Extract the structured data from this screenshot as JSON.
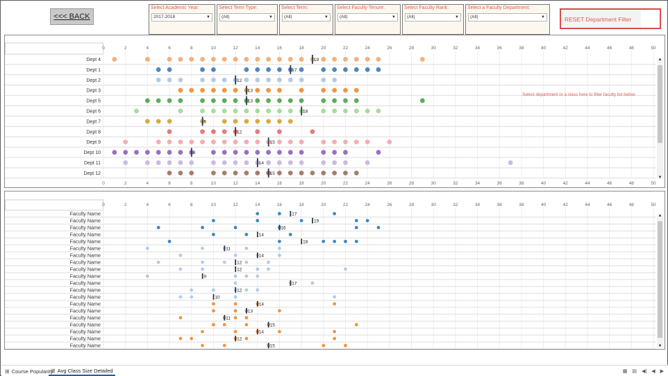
{
  "header": {
    "back_label": "<<< BACK",
    "reset_label": "RESET Department Filter"
  },
  "filters": [
    {
      "label": "Select Academic Year:",
      "value": "2017-2018"
    },
    {
      "label": "Select Term Type:",
      "value": "(All)"
    },
    {
      "label": "Select Term:",
      "value": "(All)"
    },
    {
      "label": "Select Faculty Tenure:",
      "value": "(All)"
    },
    {
      "label": "Select Faculty Rank:",
      "value": "(All)"
    },
    {
      "label": "Select a  Faculty Department:",
      "value": "(All)"
    }
  ],
  "hint": "Select department or a class here to filter faculty list below",
  "chart_data": [
    {
      "type": "scatter",
      "title": "",
      "xlim": [
        0,
        50
      ],
      "xticks": [
        0,
        2,
        4,
        6,
        8,
        10,
        12,
        14,
        16,
        18,
        20,
        22,
        24,
        26,
        28,
        30,
        32,
        34,
        36,
        38,
        40,
        42,
        44,
        46,
        48,
        50
      ],
      "rows": [
        {
          "label": "Dept 4",
          "avg": 19,
          "color": "#f2a96a",
          "points": [
            1,
            4,
            6,
            7,
            8,
            9,
            10,
            11,
            12,
            13,
            14,
            15,
            16,
            17,
            18,
            19,
            20,
            21,
            22,
            23,
            24,
            25,
            29
          ]
        },
        {
          "label": "Dept 1",
          "avg": 17,
          "color": "#3b7bb5",
          "points": [
            5,
            6,
            9,
            10,
            13,
            14,
            15,
            16,
            17,
            18,
            20,
            21,
            22,
            23,
            24,
            25
          ]
        },
        {
          "label": "Dept 2",
          "avg": 12,
          "color": "#a9c6e6",
          "points": [
            5,
            6,
            7,
            9,
            10,
            11,
            12,
            13,
            14,
            15,
            16,
            17,
            18,
            20,
            21
          ]
        },
        {
          "label": "Dept 3",
          "avg": 13,
          "color": "#ee8a2c",
          "points": [
            7,
            8,
            9,
            10,
            11,
            12,
            13,
            14,
            15,
            16,
            18,
            20,
            21,
            22,
            23
          ]
        },
        {
          "label": "Dept 5",
          "avg": 13,
          "color": "#4aa34a",
          "points": [
            4,
            5,
            6,
            7,
            9,
            10,
            11,
            12,
            13,
            14,
            15,
            16,
            17,
            18,
            20,
            21,
            22,
            23,
            29
          ]
        },
        {
          "label": "Dept 6",
          "avg": 18,
          "color": "#9dd98f",
          "points": [
            3,
            7,
            9,
            10,
            11,
            12,
            13,
            14,
            15,
            16,
            17,
            18,
            20,
            21,
            22,
            23,
            24,
            25
          ]
        },
        {
          "label": "Dept 7",
          "avg": 9,
          "color": "#d6a12c",
          "points": [
            4,
            5,
            6,
            9,
            11,
            12,
            13,
            14,
            15,
            16,
            17
          ]
        },
        {
          "label": "Dept 8",
          "avg": 12,
          "color": "#e56a6f",
          "points": [
            6,
            9,
            10,
            11,
            12,
            14,
            16,
            19
          ]
        },
        {
          "label": "Dept 9",
          "avg": 15,
          "color": "#f2a5a8",
          "points": [
            2,
            5,
            6,
            7,
            8,
            9,
            10,
            11,
            12,
            13,
            14,
            15,
            16,
            17,
            18,
            20,
            21,
            22,
            23,
            24,
            26
          ]
        },
        {
          "label": "Dept 10",
          "avg": 8,
          "color": "#8e5fbf",
          "points": [
            1,
            2,
            3,
            4,
            5,
            6,
            7,
            8,
            10,
            11,
            12,
            13,
            14,
            15,
            16,
            17,
            18,
            20,
            21,
            22,
            25
          ]
        },
        {
          "label": "Dept 11",
          "avg": 14,
          "color": "#c7b4e0",
          "points": [
            2,
            4,
            5,
            6,
            7,
            8,
            10,
            11,
            12,
            13,
            14,
            15,
            16,
            17,
            18,
            20,
            21,
            22,
            24,
            37
          ]
        },
        {
          "label": "Dept 12",
          "avg": 15,
          "color": "#9c6f5c",
          "points": [
            6,
            7,
            8,
            10,
            11,
            12,
            13,
            14,
            15,
            16,
            17,
            18,
            19,
            20,
            21,
            22,
            23
          ]
        }
      ]
    },
    {
      "type": "scatter",
      "title": "",
      "xlim": [
        0,
        50
      ],
      "xticks": [
        0,
        2,
        4,
        6,
        8,
        10,
        12,
        14,
        16,
        18,
        20,
        22,
        24,
        26,
        28,
        30,
        32,
        34,
        36,
        38,
        40,
        42,
        44,
        46,
        48,
        50
      ],
      "rows": [
        {
          "label": "Faculty Name",
          "avg": 17,
          "color": "#2f7bb5",
          "points": [
            14,
            16,
            21
          ]
        },
        {
          "label": "Faculty Name",
          "avg": 19,
          "color": "#2f7bb5",
          "points": [
            10,
            14,
            18,
            23,
            24
          ]
        },
        {
          "label": "Faculty Name",
          "avg": 16,
          "color": "#2f7bb5",
          "points": [
            5,
            9,
            12,
            16,
            23,
            25
          ]
        },
        {
          "label": "Faculty Name",
          "avg": 14,
          "color": "#2f7bb5",
          "points": [
            10,
            13,
            17
          ]
        },
        {
          "label": "Faculty Name",
          "avg": 18,
          "color": "#2f7bb5",
          "points": [
            6,
            16,
            20,
            21,
            22,
            23
          ]
        },
        {
          "label": "Faculty Name",
          "avg": 11,
          "color": "#a9c6e6",
          "points": [
            4,
            9,
            11,
            13,
            16
          ]
        },
        {
          "label": "Faculty Name",
          "avg": 14,
          "color": "#a9c6e6",
          "points": [
            7,
            12,
            14,
            16
          ]
        },
        {
          "label": "Faculty Name",
          "avg": 12,
          "color": "#a9c6e6",
          "points": [
            5,
            9,
            11,
            13,
            15
          ]
        },
        {
          "label": "Faculty Name",
          "avg": 12,
          "color": "#a9c6e6",
          "points": [
            7,
            9,
            14,
            15,
            22
          ]
        },
        {
          "label": "Faculty Name",
          "avg": 9,
          "color": "#a9c6e6",
          "points": [
            4,
            12,
            13,
            14
          ]
        },
        {
          "label": "Faculty Name",
          "avg": 17,
          "color": "#a9c6e6",
          "points": [
            12,
            17,
            19
          ]
        },
        {
          "label": "Faculty Name",
          "avg": 12,
          "color": "#a9c6e6",
          "points": [
            8,
            10,
            12,
            13,
            14
          ]
        },
        {
          "label": "Faculty Name",
          "avg": 10,
          "color": "#a9c6e6",
          "points": [
            7,
            8,
            12,
            21
          ]
        },
        {
          "label": "Faculty Name",
          "avg": 14,
          "color": "#ee8a2c",
          "points": [
            10,
            12,
            14,
            21
          ]
        },
        {
          "label": "Faculty Name",
          "avg": 13,
          "color": "#ee8a2c",
          "points": [
            10,
            12,
            13,
            16
          ]
        },
        {
          "label": "Faculty Name",
          "avg": 11,
          "color": "#ee8a2c",
          "points": [
            7,
            11,
            12,
            13
          ]
        },
        {
          "label": "Faculty Name",
          "avg": 15,
          "color": "#ee8a2c",
          "points": [
            10,
            11,
            13,
            15,
            23
          ]
        },
        {
          "label": "Faculty Name",
          "avg": 14,
          "color": "#ee8a2c",
          "points": [
            9,
            12,
            14,
            16,
            21
          ]
        },
        {
          "label": "Faculty Name",
          "avg": 12,
          "color": "#ee8a2c",
          "points": [
            7,
            8,
            12,
            13,
            21
          ]
        },
        {
          "label": "Faculty Name",
          "avg": 15,
          "color": "#ee8a2c",
          "points": [
            9,
            11,
            15,
            20,
            22
          ]
        }
      ]
    }
  ],
  "tabs": [
    {
      "label": "Course Popularity",
      "icon": "grid-icon"
    },
    {
      "label": "Avg Class Size Detailed",
      "icon": "grid-icon"
    }
  ],
  "nav_icons": [
    "grid-view-icon",
    "list-view-icon",
    "first-page-icon",
    "prev-page-icon",
    "next-page-icon"
  ]
}
